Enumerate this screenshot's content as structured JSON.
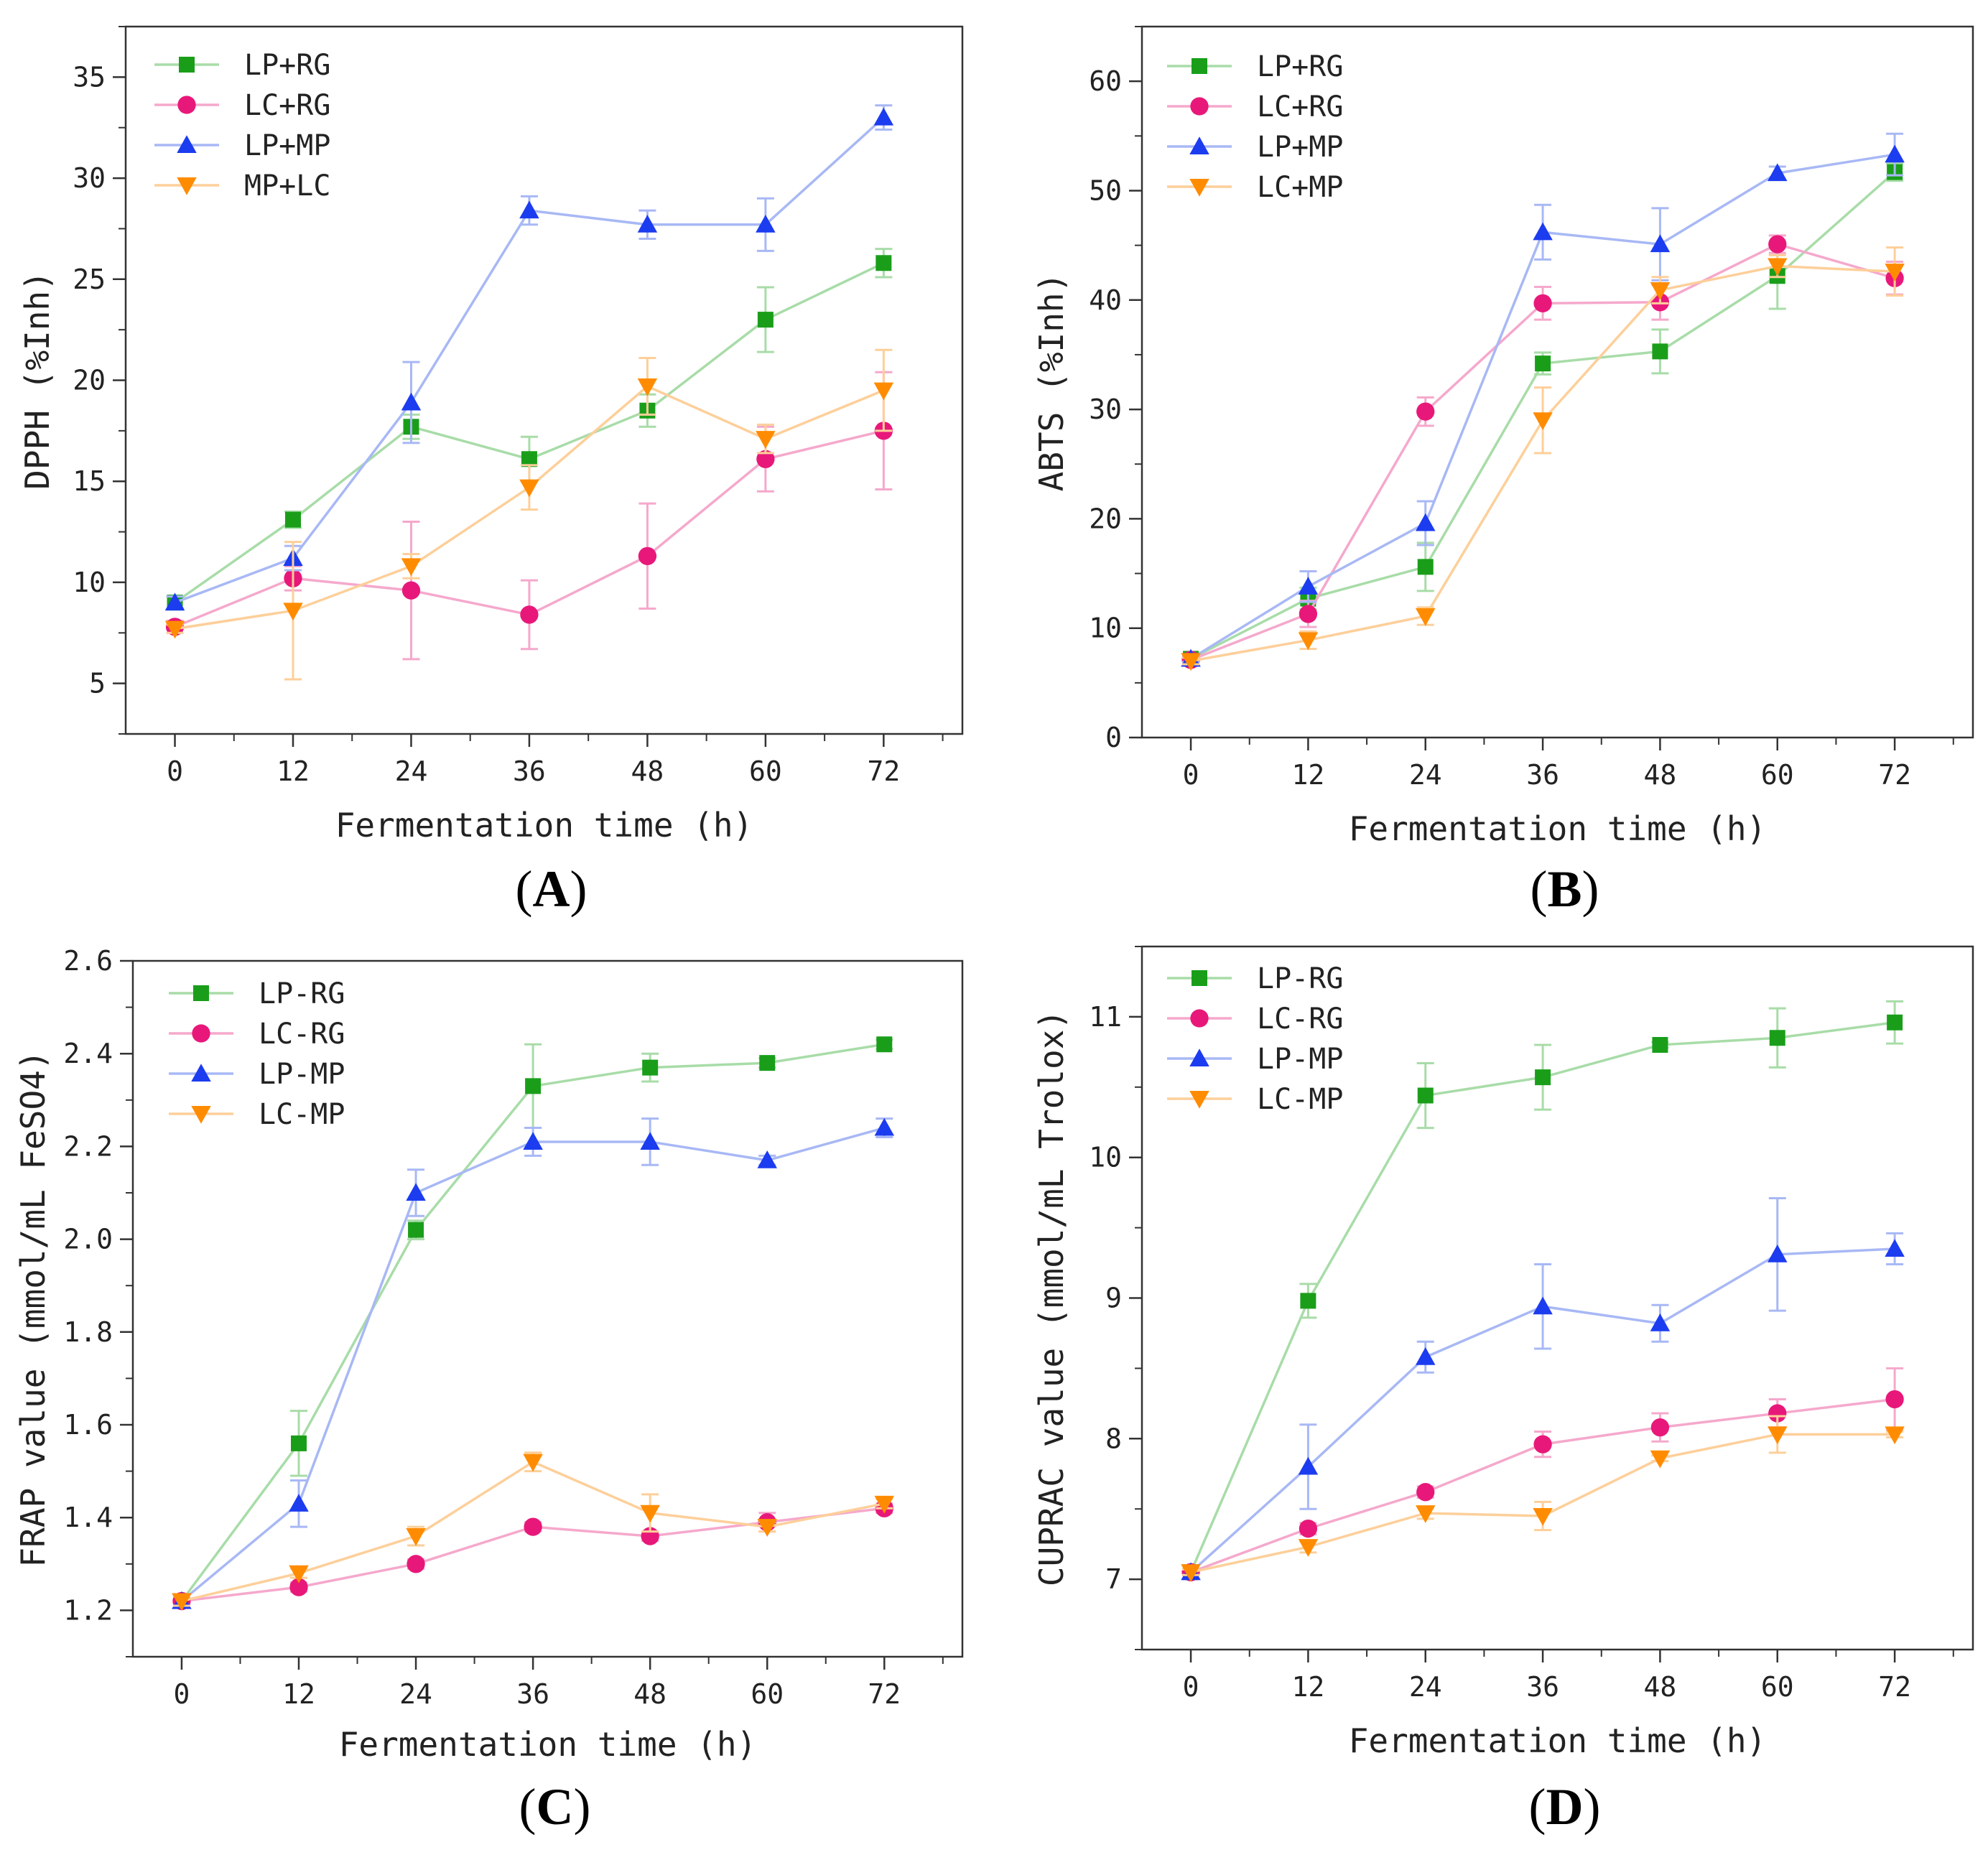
{
  "chart_data": [
    {
      "id": "A",
      "type": "line",
      "panel_label": "A",
      "xlabel": "Fermentation time (h)",
      "ylabel": "DPPH (%Inh)",
      "x": [
        0,
        12,
        24,
        36,
        48,
        60,
        72
      ],
      "xticks": [
        0,
        12,
        24,
        36,
        48,
        60,
        72
      ],
      "xlim": [
        -5,
        80
      ],
      "ylim": [
        2.5,
        37.5
      ],
      "yticks": [
        5,
        10,
        15,
        20,
        25,
        30,
        35
      ],
      "ytick_labels": [
        "5",
        "10",
        "15",
        "20",
        "25",
        "30",
        "35"
      ],
      "legend_position": "top-left",
      "grid": false,
      "series": [
        {
          "name": "LP+RG",
          "color": "#1a9e1a",
          "line_color": "#a8dca8",
          "marker": "square",
          "values": [
            9.0,
            13.1,
            17.7,
            16.1,
            18.5,
            23.0,
            25.8
          ],
          "errors": [
            0.3,
            0.4,
            0.6,
            1.1,
            0.8,
            1.6,
            0.7
          ]
        },
        {
          "name": "LC+RG",
          "color": "#e8187a",
          "line_color": "#f5a8cc",
          "marker": "circle",
          "values": [
            7.8,
            10.2,
            9.6,
            8.4,
            11.3,
            16.1,
            17.5
          ],
          "errors": [
            0.3,
            0.6,
            3.4,
            1.7,
            2.6,
            1.6,
            2.9
          ]
        },
        {
          "name": "LP+MP",
          "color": "#1c3cf0",
          "line_color": "#a8b8f5",
          "marker": "triangle-up",
          "values": [
            9.0,
            11.2,
            18.9,
            28.4,
            27.7,
            27.7,
            33.0
          ],
          "errors": [
            0.3,
            0.6,
            2.0,
            0.7,
            0.7,
            1.3,
            0.6
          ]
        },
        {
          "name": "MP+LC",
          "color": "#ff8c00",
          "line_color": "#fdcf9a",
          "marker": "triangle-down",
          "values": [
            7.7,
            8.6,
            10.8,
            14.7,
            19.7,
            17.1,
            19.5
          ],
          "errors": [
            0.2,
            3.4,
            0.6,
            1.1,
            1.4,
            0.7,
            2.0
          ]
        }
      ]
    },
    {
      "id": "B",
      "type": "line",
      "panel_label": "B",
      "xlabel": "Fermentation time (h)",
      "ylabel": "ABTS (%Inh)",
      "x": [
        0,
        12,
        24,
        36,
        48,
        60,
        72
      ],
      "xticks": [
        0,
        12,
        24,
        36,
        48,
        60,
        72
      ],
      "xlim": [
        -5,
        80
      ],
      "ylim": [
        0,
        65
      ],
      "yticks": [
        0,
        10,
        20,
        30,
        40,
        50,
        60
      ],
      "ytick_labels": [
        "0",
        "10",
        "20",
        "30",
        "40",
        "50",
        "60"
      ],
      "legend_position": "top-left",
      "grid": false,
      "series": [
        {
          "name": "LP+RG",
          "color": "#1a9e1a",
          "line_color": "#a8dca8",
          "marker": "square",
          "values": [
            7.2,
            12.7,
            15.6,
            34.2,
            35.3,
            42.2,
            51.7
          ],
          "errors": [
            0.3,
            1.0,
            2.2,
            1.0,
            2.0,
            3.0,
            0.8
          ]
        },
        {
          "name": "LC+RG",
          "color": "#e8187a",
          "line_color": "#f5a8cc",
          "marker": "circle",
          "values": [
            7.1,
            11.3,
            29.8,
            39.7,
            39.8,
            45.1,
            42.0
          ],
          "errors": [
            0.3,
            1.2,
            1.3,
            1.5,
            1.6,
            0.8,
            1.5
          ]
        },
        {
          "name": "LP+MP",
          "color": "#1c3cf0",
          "line_color": "#a8b8f5",
          "marker": "triangle-up",
          "values": [
            7.2,
            13.8,
            19.6,
            46.2,
            45.1,
            51.6,
            53.3
          ],
          "errors": [
            0.3,
            1.4,
            2.0,
            2.5,
            3.3,
            0.6,
            1.9
          ]
        },
        {
          "name": "LC+MP",
          "color": "#ff8c00",
          "line_color": "#fdcf9a",
          "marker": "triangle-down",
          "values": [
            7.0,
            8.9,
            11.1,
            29.0,
            40.9,
            43.1,
            42.6
          ],
          "errors": [
            0.3,
            0.8,
            0.8,
            3.0,
            1.2,
            1.0,
            2.2
          ]
        }
      ]
    },
    {
      "id": "C",
      "type": "line",
      "panel_label": "C",
      "xlabel": "Fermentation time (h)",
      "ylabel": "FRAP value (mmol/mL FeSO4)",
      "x": [
        0,
        12,
        24,
        36,
        48,
        60,
        72
      ],
      "xticks": [
        0,
        12,
        24,
        36,
        48,
        60,
        72
      ],
      "xlim": [
        -5,
        80
      ],
      "ylim": [
        1.1,
        2.6
      ],
      "yticks": [
        1.2,
        1.4,
        1.6,
        1.8,
        2.0,
        2.2,
        2.4,
        2.6
      ],
      "ytick_labels": [
        "1.2",
        "1.4",
        "1.6",
        "1.8",
        "2.0",
        "2.2",
        "2.4",
        "2.6"
      ],
      "legend_position": "top-left",
      "grid": false,
      "series": [
        {
          "name": "LP-RG",
          "color": "#1a9e1a",
          "line_color": "#a8dca8",
          "marker": "square",
          "values": [
            1.22,
            1.56,
            2.02,
            2.33,
            2.37,
            2.38,
            2.42
          ],
          "errors": [
            0.01,
            0.07,
            0.02,
            0.09,
            0.03,
            0.01,
            0.01
          ]
        },
        {
          "name": "LC-RG",
          "color": "#e8187a",
          "line_color": "#f5a8cc",
          "marker": "circle",
          "values": [
            1.22,
            1.25,
            1.3,
            1.38,
            1.36,
            1.39,
            1.42
          ],
          "errors": [
            0.01,
            0.01,
            0.01,
            0.01,
            0.01,
            0.02,
            0.01
          ]
        },
        {
          "name": "LP-MP",
          "color": "#1c3cf0",
          "line_color": "#a8b8f5",
          "marker": "triangle-up",
          "values": [
            1.22,
            1.43,
            2.1,
            2.21,
            2.21,
            2.17,
            2.24
          ],
          "errors": [
            0.01,
            0.05,
            0.05,
            0.03,
            0.05,
            0.01,
            0.02
          ]
        },
        {
          "name": "LC-MP",
          "color": "#ff8c00",
          "line_color": "#fdcf9a",
          "marker": "triangle-down",
          "values": [
            1.22,
            1.28,
            1.36,
            1.52,
            1.41,
            1.38,
            1.43
          ],
          "errors": [
            0.01,
            0.01,
            0.02,
            0.02,
            0.04,
            0.01,
            0.01
          ]
        }
      ]
    },
    {
      "id": "D",
      "type": "line",
      "panel_label": "D",
      "xlabel": "Fermentation time (h)",
      "ylabel": "CUPRAC value (mmol/mL Trolox)",
      "x": [
        0,
        12,
        24,
        36,
        48,
        60,
        72
      ],
      "xticks": [
        0,
        12,
        24,
        36,
        48,
        60,
        72
      ],
      "xlim": [
        -5,
        80
      ],
      "ylim": [
        6.5,
        11.5
      ],
      "yticks": [
        7,
        8,
        9,
        10,
        11
      ],
      "ytick_labels": [
        "7",
        "8",
        "9",
        "10",
        "11"
      ],
      "legend_position": "top-left",
      "grid": false,
      "series": [
        {
          "name": "LP-RG",
          "color": "#1a9e1a",
          "line_color": "#a8dca8",
          "marker": "square",
          "values": [
            7.05,
            8.98,
            10.44,
            10.57,
            10.8,
            10.85,
            10.96
          ],
          "errors": [
            0.02,
            0.12,
            0.23,
            0.23,
            0.02,
            0.21,
            0.15
          ]
        },
        {
          "name": "LC-RG",
          "color": "#e8187a",
          "line_color": "#f5a8cc",
          "marker": "circle",
          "values": [
            7.05,
            7.36,
            7.62,
            7.96,
            8.08,
            8.18,
            8.28
          ],
          "errors": [
            0.02,
            0.04,
            0.04,
            0.09,
            0.1,
            0.1,
            0.22
          ]
        },
        {
          "name": "LP-MP",
          "color": "#1c3cf0",
          "line_color": "#a8b8f5",
          "marker": "triangle-up",
          "values": [
            7.05,
            7.8,
            8.58,
            8.94,
            8.82,
            9.31,
            9.35
          ],
          "errors": [
            0.02,
            0.3,
            0.11,
            0.3,
            0.13,
            0.4,
            0.11
          ]
        },
        {
          "name": "LC-MP",
          "color": "#ff8c00",
          "line_color": "#fdcf9a",
          "marker": "triangle-down",
          "values": [
            7.05,
            7.23,
            7.47,
            7.45,
            7.86,
            8.03,
            8.03
          ],
          "errors": [
            0.02,
            0.04,
            0.04,
            0.1,
            0.02,
            0.13,
            0.02
          ]
        }
      ]
    }
  ]
}
